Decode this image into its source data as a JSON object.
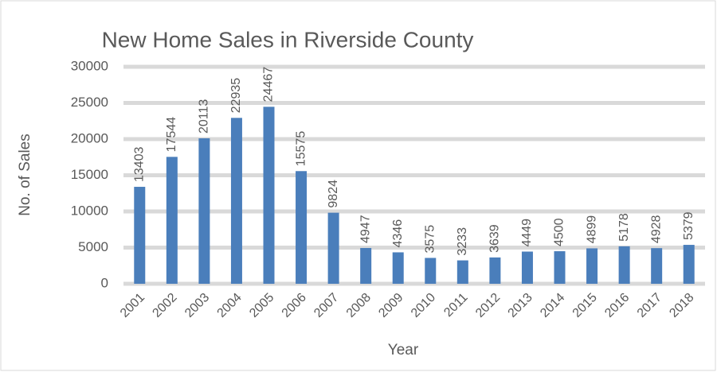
{
  "chart_data": {
    "type": "bar",
    "title": "New Home Sales in Riverside County",
    "x_label": "Year",
    "y_label": "No. of Sales",
    "categories": [
      "2001",
      "2002",
      "2003",
      "2004",
      "2005",
      "2006",
      "2007",
      "2008",
      "2009",
      "2010",
      "2011",
      "2012",
      "2013",
      "2014",
      "2015",
      "2016",
      "2017",
      "2018"
    ],
    "values": [
      13403,
      17544,
      20113,
      22935,
      24467,
      15575,
      9824,
      4947,
      4346,
      3575,
      3233,
      3639,
      4449,
      4500,
      4899,
      5178,
      4928,
      5379
    ],
    "color": "#4a7ebb",
    "ylim": [
      0,
      30000
    ],
    "yticks": [
      0,
      5000,
      10000,
      15000,
      20000,
      25000,
      30000
    ],
    "grid": true
  }
}
